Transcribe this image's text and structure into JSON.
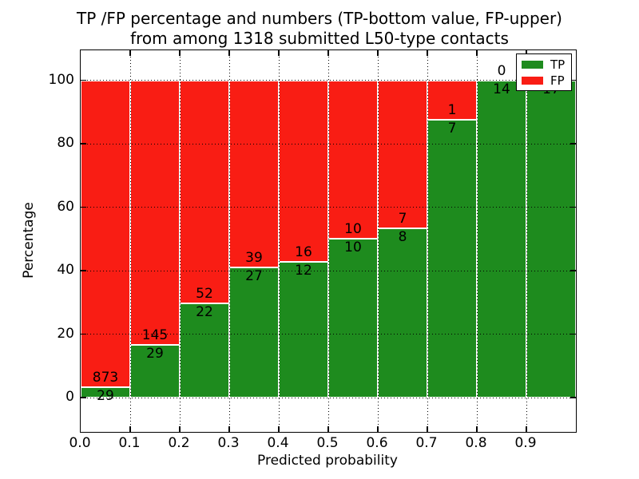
{
  "title": {
    "line1": "TP /FP percentage and numbers (TP-bottom value, FP-upper)",
    "line2": "from among 1318 submitted L50-type contacts"
  },
  "axes": {
    "xlabel": "Predicted probability",
    "ylabel": "Percentage",
    "x_tick_labels": [
      "0.0",
      "0.1",
      "0.2",
      "0.3",
      "0.4",
      "0.5",
      "0.6",
      "0.7",
      "0.8",
      "0.9"
    ],
    "y_tick_values": [
      0,
      20,
      40,
      60,
      80,
      100
    ],
    "grid_style": "dotted"
  },
  "colors": {
    "tp": "#1e8b1e",
    "fp": "#f91d14",
    "grid": "#000000",
    "background": "#ffffff",
    "text": "#000000"
  },
  "legend": {
    "items": [
      {
        "label": "TP",
        "color": "#1e8b1e"
      },
      {
        "label": "FP",
        "color": "#f91d14"
      }
    ]
  },
  "chart_data": {
    "type": "bar",
    "stacked": true,
    "title": "TP /FP percentage and numbers (TP-bottom value, FP-upper) from among 1318 submitted L50-type contacts",
    "xlabel": "Predicted probability",
    "ylabel": "Percentage",
    "xlim": [
      0.0,
      1.0
    ],
    "ylim_display": [
      -10.8,
      109.6
    ],
    "y_axis_range_labeled": [
      0,
      100
    ],
    "bin_width": 0.1,
    "total_contacts": 1318,
    "categories": [
      "0.0-0.1",
      "0.1-0.2",
      "0.2-0.3",
      "0.3-0.4",
      "0.4-0.5",
      "0.5-0.6",
      "0.6-0.7",
      "0.7-0.8",
      "0.8-0.9",
      "0.9-1.0"
    ],
    "series": [
      {
        "name": "TP",
        "counts": [
          29,
          29,
          22,
          27,
          12,
          10,
          8,
          7,
          14,
          17
        ]
      },
      {
        "name": "FP",
        "counts": [
          873,
          145,
          52,
          39,
          16,
          10,
          7,
          1,
          0,
          0
        ]
      }
    ],
    "bins": [
      {
        "x0": 0.0,
        "tp": 29,
        "fp": 873,
        "tp_label": "29",
        "fp_label": "873"
      },
      {
        "x0": 0.1,
        "tp": 29,
        "fp": 145,
        "tp_label": "29",
        "fp_label": "145"
      },
      {
        "x0": 0.2,
        "tp": 22,
        "fp": 52,
        "tp_label": "22",
        "fp_label": "52"
      },
      {
        "x0": 0.3,
        "tp": 27,
        "fp": 39,
        "tp_label": "27",
        "fp_label": "39"
      },
      {
        "x0": 0.4,
        "tp": 12,
        "fp": 16,
        "tp_label": "12",
        "fp_label": "16"
      },
      {
        "x0": 0.5,
        "tp": 10,
        "fp": 10,
        "tp_label": "10",
        "fp_label": "10"
      },
      {
        "x0": 0.6,
        "tp": 8,
        "fp": 7,
        "tp_label": "8",
        "fp_label": "7"
      },
      {
        "x0": 0.7,
        "tp": 7,
        "fp": 1,
        "tp_label": "7",
        "fp_label": "1"
      },
      {
        "x0": 0.8,
        "tp": 14,
        "fp": 0,
        "tp_label": "14",
        "fp_label": "0"
      },
      {
        "x0": 0.9,
        "tp": 17,
        "fp": 0,
        "tp_label": "17",
        "fp_label": ""
      }
    ]
  }
}
